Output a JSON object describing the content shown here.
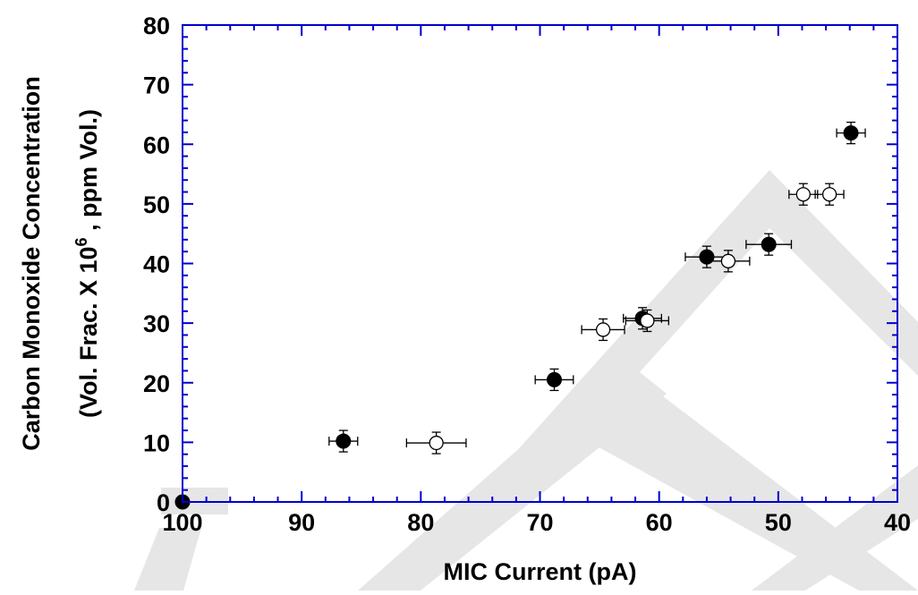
{
  "watermark_text": "DRAFT",
  "colors": {
    "frame": "#0000cc",
    "marker": "#000000",
    "watermark": "#e6e6e6",
    "background": "#ffffff"
  },
  "chart_data": {
    "type": "scatter",
    "title": "",
    "xlabel": "MIC Current (pA)",
    "ylabel_line1": "Carbon Monoxide Concentration",
    "ylabel_line2_prefix": "(Vol. Frac. X 10",
    "ylabel_line2_sup": "6",
    "ylabel_line2_suffix": " , ppm Vol.)",
    "xlim": [
      100,
      40
    ],
    "ylim": [
      0,
      80
    ],
    "x_reversed": true,
    "xticks": [
      100,
      90,
      80,
      70,
      60,
      50,
      40
    ],
    "yticks": [
      0,
      10,
      20,
      30,
      40,
      50,
      60,
      70,
      80
    ],
    "xtick_labels": [
      "100",
      "90",
      "80",
      "70",
      "60",
      "50",
      "40"
    ],
    "ytick_labels": [
      "0",
      "10",
      "20",
      "30",
      "40",
      "50",
      "60",
      "70",
      "80"
    ],
    "grid": false,
    "legend": "none",
    "series": [
      {
        "marker": "filled-circle",
        "points": [
          {
            "x": 100,
            "y": 0,
            "xerr": 0,
            "yerr": 0
          },
          {
            "x": 86.5,
            "y": 10.2,
            "xerr": 1.2,
            "yerr": 1.8
          },
          {
            "x": 68.8,
            "y": 20.5,
            "xerr": 1.6,
            "yerr": 1.8
          },
          {
            "x": 61.4,
            "y": 30.8,
            "xerr": 1.6,
            "yerr": 1.8
          },
          {
            "x": 56.0,
            "y": 41.1,
            "xerr": 1.8,
            "yerr": 1.8
          },
          {
            "x": 50.8,
            "y": 43.2,
            "xerr": 1.9,
            "yerr": 1.8
          },
          {
            "x": 43.9,
            "y": 61.9,
            "xerr": 1.2,
            "yerr": 1.8
          }
        ]
      },
      {
        "marker": "open-circle",
        "points": [
          {
            "x": 78.7,
            "y": 9.9,
            "xerr": 2.5,
            "yerr": 1.8
          },
          {
            "x": 64.7,
            "y": 28.9,
            "xerr": 1.8,
            "yerr": 1.8
          },
          {
            "x": 61.0,
            "y": 30.4,
            "xerr": 1.8,
            "yerr": 1.8
          },
          {
            "x": 54.2,
            "y": 40.4,
            "xerr": 1.8,
            "yerr": 1.8
          },
          {
            "x": 47.9,
            "y": 51.6,
            "xerr": 1.2,
            "yerr": 1.8
          },
          {
            "x": 45.7,
            "y": 51.6,
            "xerr": 1.2,
            "yerr": 1.8
          }
        ]
      }
    ]
  }
}
